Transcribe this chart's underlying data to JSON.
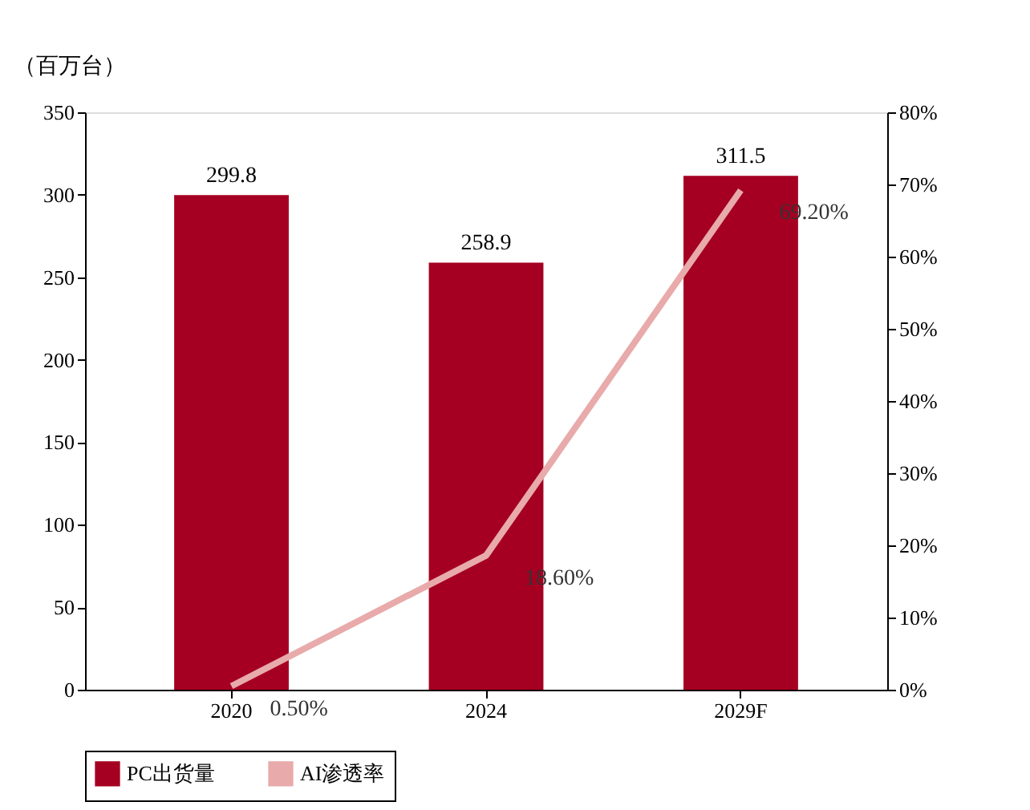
{
  "chart_data": {
    "type": "bar",
    "ylabel": "（百万台）",
    "categories": [
      "2020",
      "2024",
      "2029F"
    ],
    "series": [
      {
        "name": "PC出货量",
        "color": "#a50021",
        "values": [
          299.8,
          258.9,
          311.5
        ],
        "value_labels": [
          "299.8",
          "258.9",
          "311.5"
        ]
      },
      {
        "name": "AI渗透率",
        "type": "line",
        "axis": "y2",
        "color": "#e8aaaa",
        "values": [
          0.5,
          18.6,
          69.2
        ],
        "value_labels": [
          "0.50%",
          "18.60%",
          "69.20%"
        ]
      }
    ],
    "ylim": [
      0,
      350
    ],
    "yticks": [
      0,
      50,
      100,
      150,
      200,
      250,
      300,
      350
    ],
    "y2lim": [
      0,
      80
    ],
    "y2ticks": [
      {
        "value": 0,
        "label": "0%"
      },
      {
        "value": 10,
        "label": "10%"
      },
      {
        "value": 20,
        "label": "20%"
      },
      {
        "value": 30,
        "label": "30%"
      },
      {
        "value": 40,
        "label": "40%"
      },
      {
        "value": 50,
        "label": "50%"
      },
      {
        "value": 60,
        "label": "60%"
      },
      {
        "value": 70,
        "label": "70%"
      },
      {
        "value": 80,
        "label": "80%"
      }
    ],
    "grid": false,
    "legend": "bottom",
    "marker": "none",
    "line_style": "solid"
  }
}
